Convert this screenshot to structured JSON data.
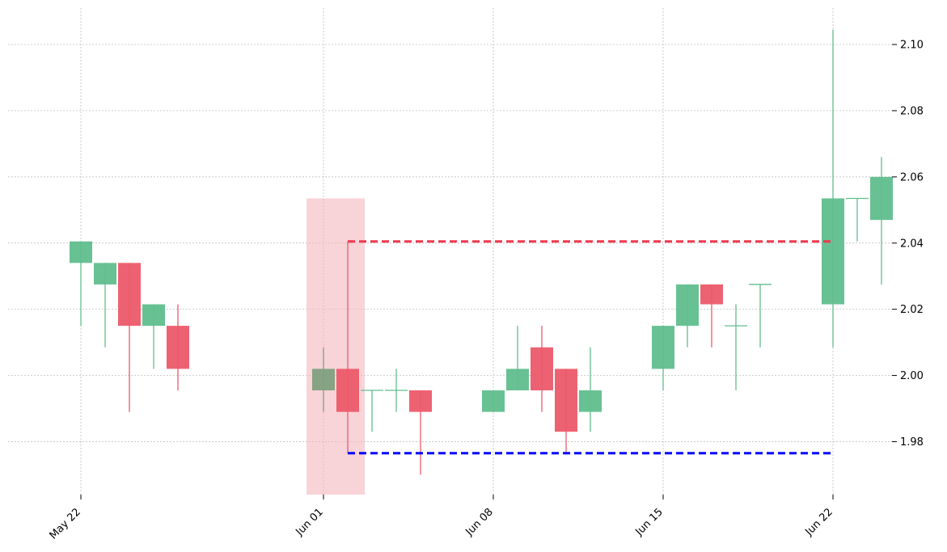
{
  "chart_data": {
    "type": "candlestick",
    "title": "",
    "xlabel": "",
    "ylabel": "",
    "ylim": [
      1.964,
      2.111
    ],
    "y_ticks": [
      1.98,
      2.0,
      2.02,
      2.04,
      2.06,
      2.08,
      2.1
    ],
    "y_tick_labels": [
      "1.98",
      "2.00",
      "2.02",
      "2.04",
      "2.06",
      "2.08",
      "2.10"
    ],
    "x_ticks": [
      {
        "date": "2020-05-22",
        "label": "May 22"
      },
      {
        "date": "2020-06-01",
        "label": "Jun 01"
      },
      {
        "date": "2020-06-08",
        "label": "Jun 08"
      },
      {
        "date": "2020-06-15",
        "label": "Jun 15"
      },
      {
        "date": "2020-06-22",
        "label": "Jun 22"
      }
    ],
    "xlim": [
      "2020-05-22",
      "2020-06-26"
    ],
    "grid": true,
    "candles": [
      {
        "date": "2020-05-22",
        "open": 2.034,
        "high": 2.0405,
        "low": 2.015,
        "close": 2.0405
      },
      {
        "date": "2020-05-23",
        "open": 2.0275,
        "high": 2.034,
        "low": 2.0085,
        "close": 2.034
      },
      {
        "date": "2020-05-24",
        "open": 2.034,
        "high": 2.034,
        "low": 1.989,
        "close": 2.015
      },
      {
        "date": "2020-05-25",
        "open": 2.015,
        "high": 2.0215,
        "low": 2.002,
        "close": 2.0215
      },
      {
        "date": "2020-05-26",
        "open": 2.015,
        "high": 2.0215,
        "low": 1.9955,
        "close": 2.002
      },
      {
        "date": "2020-06-01",
        "open": 1.9955,
        "high": 2.0085,
        "low": 1.989,
        "close": 2.002
      },
      {
        "date": "2020-06-02",
        "open": 2.002,
        "high": 2.0405,
        "low": 1.9765,
        "close": 1.989
      },
      {
        "date": "2020-06-03",
        "open": 1.9955,
        "high": 1.9955,
        "low": 1.983,
        "close": 1.9955
      },
      {
        "date": "2020-06-04",
        "open": 1.9955,
        "high": 2.002,
        "low": 1.989,
        "close": 1.9955
      },
      {
        "date": "2020-06-05",
        "open": 1.9955,
        "high": 1.9955,
        "low": 1.97,
        "close": 1.989
      },
      {
        "date": "2020-06-08",
        "open": 1.989,
        "high": 1.9955,
        "low": 1.989,
        "close": 1.9955
      },
      {
        "date": "2020-06-09",
        "open": 1.9955,
        "high": 2.015,
        "low": 1.9955,
        "close": 2.002
      },
      {
        "date": "2020-06-10",
        "open": 2.0085,
        "high": 2.015,
        "low": 1.989,
        "close": 1.9955
      },
      {
        "date": "2020-06-11",
        "open": 2.002,
        "high": 2.002,
        "low": 1.9765,
        "close": 1.983
      },
      {
        "date": "2020-06-12",
        "open": 1.989,
        "high": 2.0085,
        "low": 1.983,
        "close": 1.9955
      },
      {
        "date": "2020-06-15",
        "open": 2.002,
        "high": 2.015,
        "low": 1.9955,
        "close": 2.015
      },
      {
        "date": "2020-06-16",
        "open": 2.015,
        "high": 2.0275,
        "low": 2.0085,
        "close": 2.0275
      },
      {
        "date": "2020-06-17",
        "open": 2.0275,
        "high": 2.0275,
        "low": 2.0085,
        "close": 2.0215
      },
      {
        "date": "2020-06-18",
        "open": 2.015,
        "high": 2.0215,
        "low": 1.9955,
        "close": 2.015
      },
      {
        "date": "2020-06-19",
        "open": 2.0275,
        "high": 2.0275,
        "low": 2.0085,
        "close": 2.0275
      },
      {
        "date": "2020-06-22",
        "open": 2.0215,
        "high": 2.1045,
        "low": 2.0085,
        "close": 2.0535
      },
      {
        "date": "2020-06-23",
        "open": 2.0535,
        "high": 2.0535,
        "low": 2.0405,
        "close": 2.0535
      },
      {
        "date": "2020-06-24",
        "open": 2.047,
        "high": 2.066,
        "low": 2.0275,
        "close": 2.06
      }
    ],
    "highlight_band": {
      "candle_start": 5,
      "candle_end": 6,
      "y_from": 1.964,
      "y_to": 2.0535,
      "color": "#f4b6bd"
    },
    "resistance_line": {
      "value": 2.0405,
      "from_candle": 6,
      "to_candle": 20,
      "color": "#f0394f"
    },
    "support_line": {
      "value": 1.9765,
      "from_candle": 6,
      "to_candle": 20,
      "color": "#0000ff"
    },
    "colors": {
      "up": "#60be8d",
      "down": "#ec5a6a",
      "grid": "#b5b5b5",
      "band_candle_overlay": "#7fa07f"
    }
  }
}
